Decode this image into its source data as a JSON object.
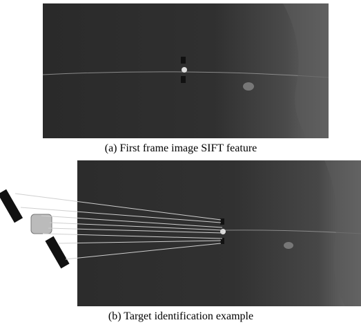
{
  "figure": {
    "panels": [
      {
        "caption": "(a) First frame image SIFT feature"
      },
      {
        "caption": "(b) Target identification example"
      }
    ]
  }
}
